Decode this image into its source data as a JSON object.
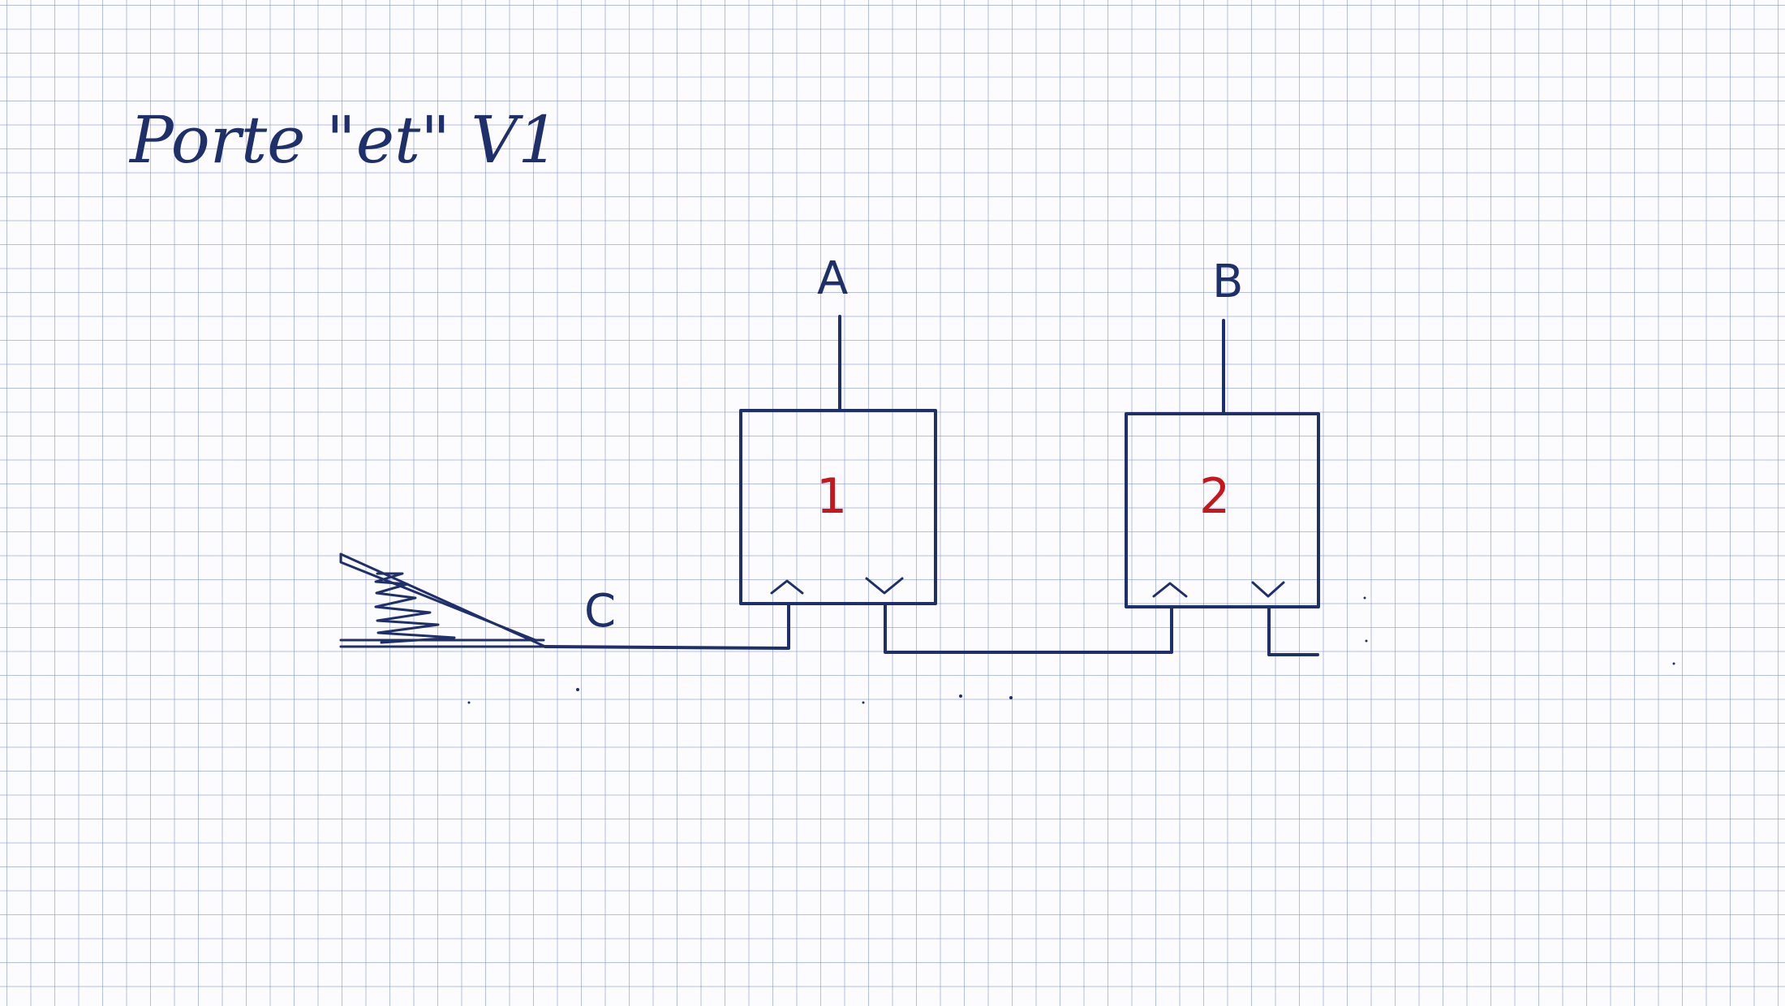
{
  "title": "Porte \"et\" V1",
  "labels": {
    "a": "A",
    "b": "B",
    "c": "C"
  },
  "valves": [
    {
      "number": "1",
      "color": "#c8161d"
    },
    {
      "number": "2",
      "color": "#c8161d"
    }
  ],
  "colors": {
    "ink": "#1f2f6a",
    "grid": "#7f8fd2",
    "paper": "#fcfcfe"
  }
}
